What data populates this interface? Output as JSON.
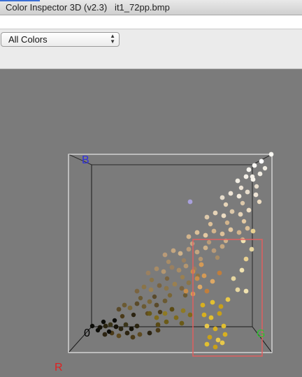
{
  "window": {
    "title": "Color Inspector 3D (v2.3)   it1_72pp.bmp"
  },
  "toolbar": {
    "view_select": {
      "value": "All Colors"
    }
  },
  "viewport": {
    "axes": {
      "origin": "0",
      "b": "B",
      "g": "G",
      "r": "R"
    },
    "colors": {
      "background": "#7b7b7b",
      "cube_edge": "#ffffff",
      "selection": "#e06060",
      "label_b": "#3030e0",
      "label_g": "#30c030",
      "label_r": "#e02020",
      "label_origin": "#000000"
    }
  }
}
